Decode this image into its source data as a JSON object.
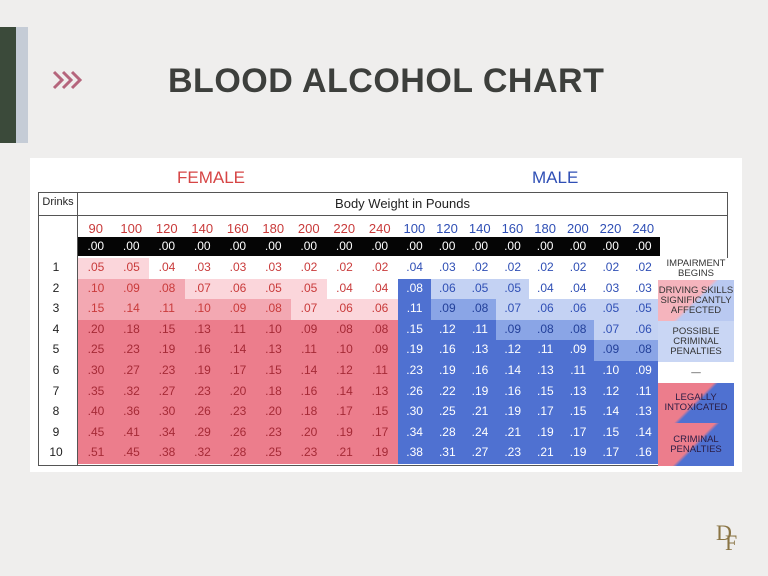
{
  "slide": {
    "title": "BLOOD ALCOHOL CHART"
  },
  "colors": {
    "female": "#ee7f8b",
    "male": "#4d6fd0",
    "sober": "#050505",
    "accent": "#3b4a3a"
  },
  "chart": {
    "female_label": "FEMALE",
    "male_label": "MALE",
    "drinks_header": "Drinks",
    "weight_header": "Body Weight in Pounds",
    "female_weights": [
      "90",
      "100",
      "120",
      "140",
      "160",
      "180",
      "200",
      "220",
      "240"
    ],
    "male_weights": [
      "100",
      "120",
      "140",
      "160",
      "180",
      "200",
      "220",
      "240"
    ],
    "drinks": [
      "1",
      "2",
      "3",
      "4",
      "5",
      "6",
      "7",
      "8",
      "9",
      "10"
    ],
    "zero_value": ".00",
    "female_rows": [
      [
        ".05",
        ".05",
        ".04",
        ".03",
        ".03",
        ".03",
        ".02",
        ".02",
        ".02"
      ],
      [
        ".10",
        ".09",
        ".08",
        ".07",
        ".06",
        ".05",
        ".05",
        ".04",
        ".04"
      ],
      [
        ".15",
        ".14",
        ".11",
        ".10",
        ".09",
        ".08",
        ".07",
        ".06",
        ".06"
      ],
      [
        ".20",
        ".18",
        ".15",
        ".13",
        ".11",
        ".10",
        ".09",
        ".08",
        ".08"
      ],
      [
        ".25",
        ".23",
        ".19",
        ".16",
        ".14",
        ".13",
        ".11",
        ".10",
        ".09"
      ],
      [
        ".30",
        ".27",
        ".23",
        ".19",
        ".17",
        ".15",
        ".14",
        ".12",
        ".11"
      ],
      [
        ".35",
        ".32",
        ".27",
        ".23",
        ".20",
        ".18",
        ".16",
        ".14",
        ".13"
      ],
      [
        ".40",
        ".36",
        ".30",
        ".26",
        ".23",
        ".20",
        ".18",
        ".17",
        ".15"
      ],
      [
        ".45",
        ".41",
        ".34",
        ".29",
        ".26",
        ".23",
        ".20",
        ".19",
        ".17"
      ],
      [
        ".51",
        ".45",
        ".38",
        ".32",
        ".28",
        ".25",
        ".23",
        ".21",
        ".19"
      ]
    ],
    "male_rows": [
      [
        ".04",
        ".03",
        ".02",
        ".02",
        ".02",
        ".02",
        ".02",
        ".02"
      ],
      [
        ".08",
        ".06",
        ".05",
        ".05",
        ".04",
        ".04",
        ".03",
        ".03"
      ],
      [
        ".11",
        ".09",
        ".08",
        ".07",
        ".06",
        ".06",
        ".05",
        ".05"
      ],
      [
        ".15",
        ".12",
        ".11",
        ".09",
        ".08",
        ".08",
        ".07",
        ".06"
      ],
      [
        ".19",
        ".16",
        ".13",
        ".12",
        ".11",
        ".09",
        ".09",
        ".08"
      ],
      [
        ".23",
        ".19",
        ".16",
        ".14",
        ".13",
        ".11",
        ".10",
        ".09"
      ],
      [
        ".26",
        ".22",
        ".19",
        ".16",
        ".15",
        ".13",
        ".12",
        ".11"
      ],
      [
        ".30",
        ".25",
        ".21",
        ".19",
        ".17",
        ".15",
        ".14",
        ".13"
      ],
      [
        ".34",
        ".28",
        ".24",
        ".21",
        ".19",
        ".17",
        ".15",
        ".14"
      ],
      [
        ".38",
        ".31",
        ".27",
        ".23",
        ".21",
        ".19",
        ".17",
        ".16"
      ]
    ],
    "female_shade": [
      [
        1,
        1,
        0,
        0,
        0,
        0,
        0,
        0,
        0
      ],
      [
        2,
        2,
        2,
        1,
        1,
        1,
        1,
        0,
        0
      ],
      [
        2,
        2,
        2,
        2,
        2,
        2,
        1,
        1,
        1
      ],
      [
        3,
        3,
        3,
        3,
        3,
        3,
        3,
        3,
        3
      ],
      [
        3,
        3,
        3,
        3,
        3,
        3,
        3,
        3,
        3
      ],
      [
        3,
        3,
        3,
        3,
        3,
        3,
        3,
        3,
        3
      ],
      [
        3,
        3,
        3,
        3,
        3,
        3,
        3,
        3,
        3
      ],
      [
        3,
        3,
        3,
        3,
        3,
        3,
        3,
        3,
        3
      ],
      [
        3,
        3,
        3,
        3,
        3,
        3,
        3,
        3,
        3
      ],
      [
        3,
        3,
        3,
        3,
        3,
        3,
        3,
        3,
        3
      ]
    ],
    "male_shade": [
      [
        0,
        0,
        0,
        0,
        0,
        0,
        0,
        0
      ],
      [
        3,
        1,
        1,
        1,
        0,
        0,
        0,
        0
      ],
      [
        3,
        2,
        2,
        1,
        1,
        1,
        1,
        1
      ],
      [
        3,
        3,
        3,
        2,
        2,
        2,
        1,
        1
      ],
      [
        3,
        3,
        3,
        3,
        3,
        3,
        2,
        2
      ],
      [
        3,
        3,
        3,
        3,
        3,
        3,
        3,
        3
      ],
      [
        3,
        3,
        3,
        3,
        3,
        3,
        3,
        3
      ],
      [
        3,
        3,
        3,
        3,
        3,
        3,
        3,
        3
      ],
      [
        3,
        3,
        3,
        3,
        3,
        3,
        3,
        3
      ],
      [
        3,
        3,
        3,
        3,
        3,
        3,
        3,
        3
      ]
    ],
    "legend": [
      {
        "text": "IMPAIRMENT BEGINS",
        "style": "white"
      },
      {
        "text": "DRIVING SKILLS SIGNIFICANTLY AFFECTED",
        "style": "blend-light"
      },
      {
        "text": "POSSIBLE CRIMINAL PENALTIES",
        "style": "light-blue"
      },
      {
        "text": "—",
        "style": "white"
      },
      {
        "text": "LEGALLY INTOXICATED",
        "style": "blend-dark"
      },
      {
        "text": "CRIMINAL PENALTIES",
        "style": "blend-dark"
      }
    ]
  },
  "logo": {
    "text_d": "D",
    "text_f": "F"
  }
}
